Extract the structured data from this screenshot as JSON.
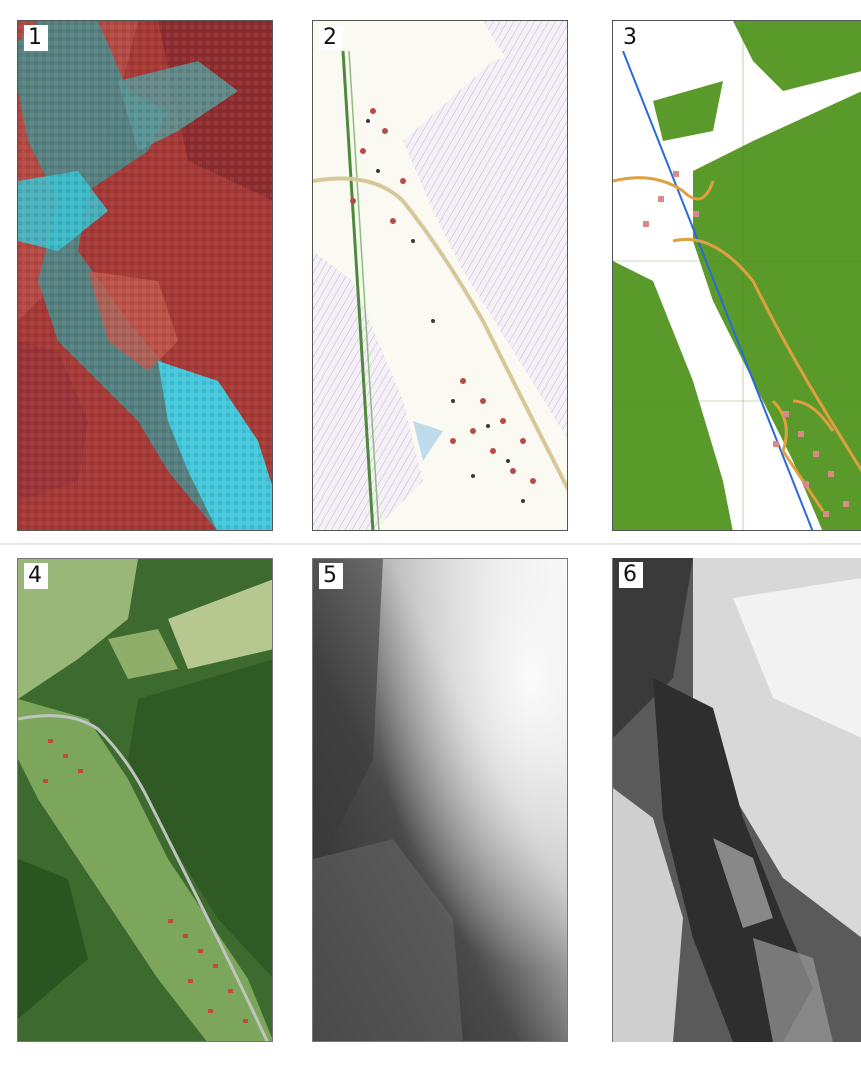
{
  "panels": [
    {
      "id": "1",
      "label": "1",
      "content": "false-color-satellite-image"
    },
    {
      "id": "2",
      "label": "2",
      "content": "topographic-map"
    },
    {
      "id": "3",
      "label": "3",
      "content": "land-cover-map"
    },
    {
      "id": "4",
      "label": "4",
      "content": "aerial-orthophoto"
    },
    {
      "id": "5",
      "label": "5",
      "content": "digital-terrain-model"
    },
    {
      "id": "6",
      "label": "6",
      "content": "digital-surface-model"
    }
  ],
  "colors": {
    "forest": "#5a9a2a",
    "road": "#e0a040",
    "building": "#d88a8a",
    "rail": "#2a6ad8",
    "false_color_red": "#b8403a",
    "false_color_cyan": "#4fd0e0"
  }
}
